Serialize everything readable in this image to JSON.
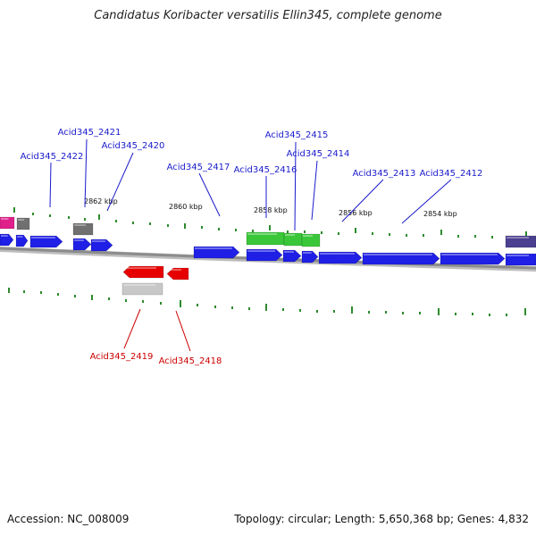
{
  "title": "Candidatus Koribacter versatilis Ellin345, complete genome",
  "footer": {
    "accession": "Accession: NC_008009",
    "topology": "Topology: circular; Length: 5,650,368 bp; Genes: 4,832"
  },
  "colors": {
    "backbone": "#8c8c8c",
    "tick": "#2e8b2e",
    "forward_gene": "#1f1fe6",
    "forward_label": "#1a1acc",
    "reverse_gene": "#e60000",
    "reverse_label": "#cc0000",
    "highlight_gene": "#39c739",
    "rna": "#707070",
    "magenta": "#e0208a",
    "dark_purple": "#4a3f90",
    "light_gray": "#c8c8c8"
  },
  "scale_labels": [
    "2862 kbp",
    "2860 kbp",
    "2858 kbp",
    "2856 kbp",
    "2854 kbp"
  ],
  "gene_labels": [
    {
      "text": "Acid345_2421",
      "strand": "forward"
    },
    {
      "text": "Acid345_2420",
      "strand": "forward"
    },
    {
      "text": "Acid345_2422",
      "strand": "forward"
    },
    {
      "text": "Acid345_2417",
      "strand": "forward"
    },
    {
      "text": "Acid345_2415",
      "strand": "forward"
    },
    {
      "text": "Acid345_2416",
      "strand": "forward"
    },
    {
      "text": "Acid345_2414",
      "strand": "forward"
    },
    {
      "text": "Acid345_2413",
      "strand": "forward"
    },
    {
      "text": "Acid345_2412",
      "strand": "forward"
    },
    {
      "text": "Acid345_2419",
      "strand": "reverse"
    },
    {
      "text": "Acid345_2418",
      "strand": "reverse"
    }
  ]
}
